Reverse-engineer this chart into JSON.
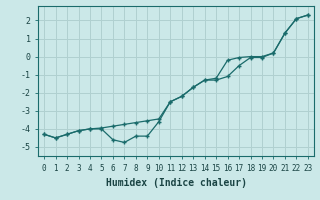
{
  "xlabel": "Humidex (Indice chaleur)",
  "background_color": "#cbe8e8",
  "grid_color": "#b0d0d0",
  "line_color": "#1a6b6b",
  "xlim": [
    -0.5,
    23.5
  ],
  "ylim": [
    -5.5,
    2.8
  ],
  "yticks": [
    -5,
    -4,
    -3,
    -2,
    -1,
    0,
    1,
    2
  ],
  "xticks": [
    0,
    1,
    2,
    3,
    4,
    5,
    6,
    7,
    8,
    9,
    10,
    11,
    12,
    13,
    14,
    15,
    16,
    17,
    18,
    19,
    20,
    21,
    22,
    23
  ],
  "line1_x": [
    0,
    1,
    2,
    3,
    4,
    5,
    6,
    7,
    8,
    9,
    10,
    11,
    12,
    13,
    14,
    15,
    16,
    17,
    18,
    19,
    20,
    21,
    22,
    23
  ],
  "line1_y": [
    -4.3,
    -4.5,
    -4.3,
    -4.1,
    -4.0,
    -4.0,
    -4.6,
    -4.75,
    -4.4,
    -4.4,
    -3.6,
    -2.5,
    -2.2,
    -1.7,
    -1.3,
    -1.3,
    -1.1,
    -0.5,
    -0.05,
    -0.05,
    0.2,
    1.3,
    2.1,
    2.3
  ],
  "line2_x": [
    0,
    1,
    2,
    3,
    4,
    5,
    6,
    7,
    8,
    9,
    10,
    11,
    12,
    13,
    14,
    15,
    16,
    17,
    18,
    19,
    20,
    21,
    22,
    23
  ],
  "line2_y": [
    -4.3,
    -4.5,
    -4.3,
    -4.1,
    -4.0,
    -3.95,
    -3.85,
    -3.75,
    -3.65,
    -3.55,
    -3.45,
    -2.5,
    -2.2,
    -1.7,
    -1.3,
    -1.2,
    -0.2,
    -0.05,
    0.0,
    0.0,
    0.2,
    1.3,
    2.1,
    2.3
  ]
}
